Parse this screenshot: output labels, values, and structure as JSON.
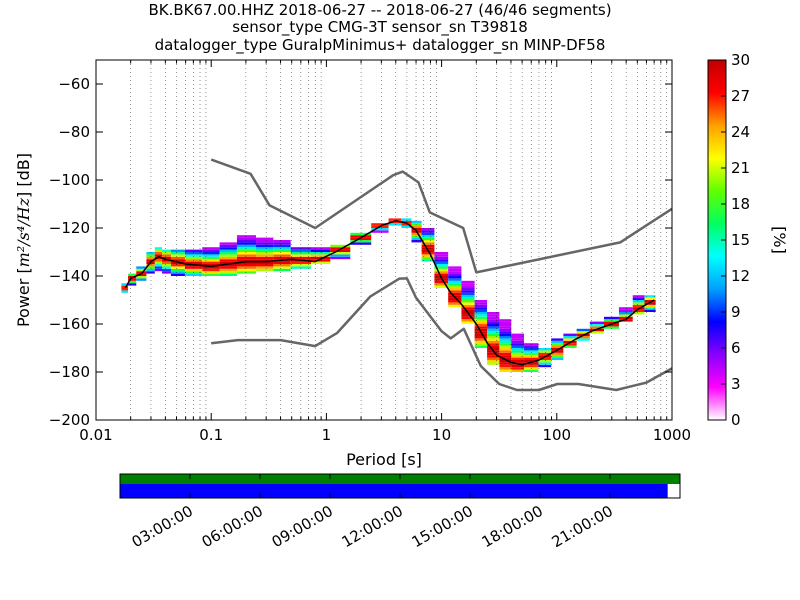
{
  "chart_data": {
    "type": "heatmap",
    "title_lines": [
      "BK.BK67.00.HHZ   2018-06-27 -- 2018-06-27  (46/46 segments)",
      "sensor_type CMG-3T sensor_sn T39818",
      "datalogger_type GuralpMinimus+ datalogger_sn MINP-DF58"
    ],
    "xlabel": "Period [s]",
    "ylabel_prefix": "Power [",
    "ylabel_units": "m²/s⁴/Hz",
    "ylabel_suffix": "] [dB]",
    "x_scale": "log",
    "xlim": [
      0.01,
      1000
    ],
    "ylim": [
      -200,
      -50
    ],
    "x_ticks": [
      {
        "value": 0.01,
        "label": "0.01"
      },
      {
        "value": 0.1,
        "label": "0.1"
      },
      {
        "value": 1,
        "label": "1"
      },
      {
        "value": 10,
        "label": "10"
      },
      {
        "value": 100,
        "label": "100"
      },
      {
        "value": 1000,
        "label": "1000"
      }
    ],
    "y_ticks": [
      {
        "value": -60,
        "label": "−60"
      },
      {
        "value": -80,
        "label": "−80"
      },
      {
        "value": -100,
        "label": "−100"
      },
      {
        "value": -120,
        "label": "−120"
      },
      {
        "value": -140,
        "label": "−140"
      },
      {
        "value": -160,
        "label": "−160"
      },
      {
        "value": -180,
        "label": "−180"
      },
      {
        "value": -200,
        "label": "−200"
      }
    ],
    "grid": "dotted vertical lines at period bins and major decades",
    "colorbar": {
      "label": "[%]",
      "range": [
        0,
        30
      ],
      "ticks": [
        "0",
        "3",
        "6",
        "9",
        "12",
        "15",
        "18",
        "21",
        "24",
        "27",
        "30"
      ],
      "colormap": [
        "#ffffff",
        "#ff00ff",
        "#8800ff",
        "#0000ff",
        "#00a0ff",
        "#00ffff",
        "#00ff60",
        "#60ff00",
        "#ffff00",
        "#ffa000",
        "#ff0000",
        "#c00000"
      ]
    },
    "noise_model_high": {
      "x": [
        0.1,
        0.22,
        0.32,
        0.8,
        3.8,
        4.6,
        6.3,
        7.9,
        15.4,
        20,
        354.8,
        1000
      ],
      "y": [
        -91.5,
        -97.4,
        -110.5,
        -120,
        -98,
        -96.5,
        -101,
        -113.5,
        -120,
        -138.5,
        -126,
        -112
      ]
    },
    "noise_model_low": {
      "x": [
        0.1,
        0.17,
        0.4,
        0.8,
        1.24,
        2.4,
        4.3,
        5,
        6,
        10,
        12,
        15.6,
        21.9,
        31.6,
        45,
        70,
        101,
        154,
        328,
        600,
        1000
      ],
      "y": [
        -168,
        -166.7,
        -166.7,
        -169.2,
        -163.7,
        -148.6,
        -141.1,
        -141,
        -149,
        -163,
        -166,
        -162,
        -177.5,
        -185,
        -187.5,
        -187.5,
        -185,
        -185,
        -187.5,
        -184.4,
        -178.5
      ]
    },
    "mode_line": {
      "x": [
        0.018,
        0.02,
        0.025,
        0.03,
        0.035,
        0.04,
        0.06,
        0.1,
        0.2,
        0.3,
        0.5,
        0.8,
        1.2,
        2,
        3,
        4,
        5,
        6,
        8,
        10,
        12,
        15,
        20,
        25,
        30,
        40,
        50,
        70,
        100,
        150,
        200,
        300,
        400,
        500,
        700
      ],
      "y": [
        -145,
        -141,
        -139,
        -134,
        -132,
        -133,
        -135,
        -136,
        -134,
        -134,
        -133,
        -134,
        -130,
        -124,
        -119,
        -117,
        -118,
        -121,
        -131,
        -141,
        -147,
        -152,
        -160,
        -168,
        -173,
        -176,
        -177,
        -175,
        -171,
        -166,
        -163,
        -160,
        -158,
        -154,
        -150
      ]
    },
    "psd_columns": [
      {
        "x": 0.018,
        "lo": -147,
        "hi": -143
      },
      {
        "x": 0.02,
        "lo": -144,
        "hi": -139
      },
      {
        "x": 0.025,
        "lo": -142,
        "hi": -136
      },
      {
        "x": 0.03,
        "lo": -139,
        "hi": -130
      },
      {
        "x": 0.035,
        "lo": -138,
        "hi": -128
      },
      {
        "x": 0.04,
        "lo": -139,
        "hi": -129
      },
      {
        "x": 0.05,
        "lo": -140,
        "hi": -129
      },
      {
        "x": 0.07,
        "lo": -140,
        "hi": -129
      },
      {
        "x": 0.1,
        "lo": -140,
        "hi": -128
      },
      {
        "x": 0.14,
        "lo": -140,
        "hi": -126
      },
      {
        "x": 0.2,
        "lo": -139,
        "hi": -123
      },
      {
        "x": 0.3,
        "lo": -138,
        "hi": -124
      },
      {
        "x": 0.4,
        "lo": -138,
        "hi": -125
      },
      {
        "x": 0.6,
        "lo": -137,
        "hi": -128
      },
      {
        "x": 0.9,
        "lo": -135,
        "hi": -128
      },
      {
        "x": 1.3,
        "lo": -133,
        "hi": -127
      },
      {
        "x": 2,
        "lo": -127,
        "hi": -122
      },
      {
        "x": 3,
        "lo": -122,
        "hi": -118
      },
      {
        "x": 4,
        "lo": -119,
        "hi": -116
      },
      {
        "x": 5,
        "lo": -120,
        "hi": -116
      },
      {
        "x": 6,
        "lo": -126,
        "hi": -117
      },
      {
        "x": 7.5,
        "lo": -134,
        "hi": -120
      },
      {
        "x": 10,
        "lo": -145,
        "hi": -130
      },
      {
        "x": 13,
        "lo": -153,
        "hi": -136
      },
      {
        "x": 17,
        "lo": -160,
        "hi": -142
      },
      {
        "x": 22,
        "lo": -170,
        "hi": -150
      },
      {
        "x": 28,
        "lo": -177,
        "hi": -155
      },
      {
        "x": 36,
        "lo": -180,
        "hi": -158
      },
      {
        "x": 45,
        "lo": -180,
        "hi": -164
      },
      {
        "x": 60,
        "lo": -180,
        "hi": -168
      },
      {
        "x": 80,
        "lo": -178,
        "hi": -170
      },
      {
        "x": 100,
        "lo": -175,
        "hi": -166
      },
      {
        "x": 130,
        "lo": -170,
        "hi": -164
      },
      {
        "x": 170,
        "lo": -167,
        "hi": -162
      },
      {
        "x": 220,
        "lo": -164,
        "hi": -159
      },
      {
        "x": 300,
        "lo": -162,
        "hi": -157
      },
      {
        "x": 400,
        "lo": -159,
        "hi": -153
      },
      {
        "x": 520,
        "lo": -156,
        "hi": -148
      },
      {
        "x": 640,
        "lo": -155,
        "hi": -148
      }
    ],
    "coverage": {
      "tick_labels": [
        "03:00:00",
        "06:00:00",
        "09:00:00",
        "12:00:00",
        "15:00:00",
        "18:00:00",
        "21:00:00"
      ],
      "tick_fractions": [
        0.125,
        0.25,
        0.375,
        0.5,
        0.625,
        0.75,
        0.875
      ],
      "data_color": "#008000",
      "segments_color": "#0000ff",
      "data_fraction": 1.0,
      "segments_fraction": 0.978
    },
    "line_color_noise_model": "#666666",
    "line_color_mode": "#000000"
  }
}
